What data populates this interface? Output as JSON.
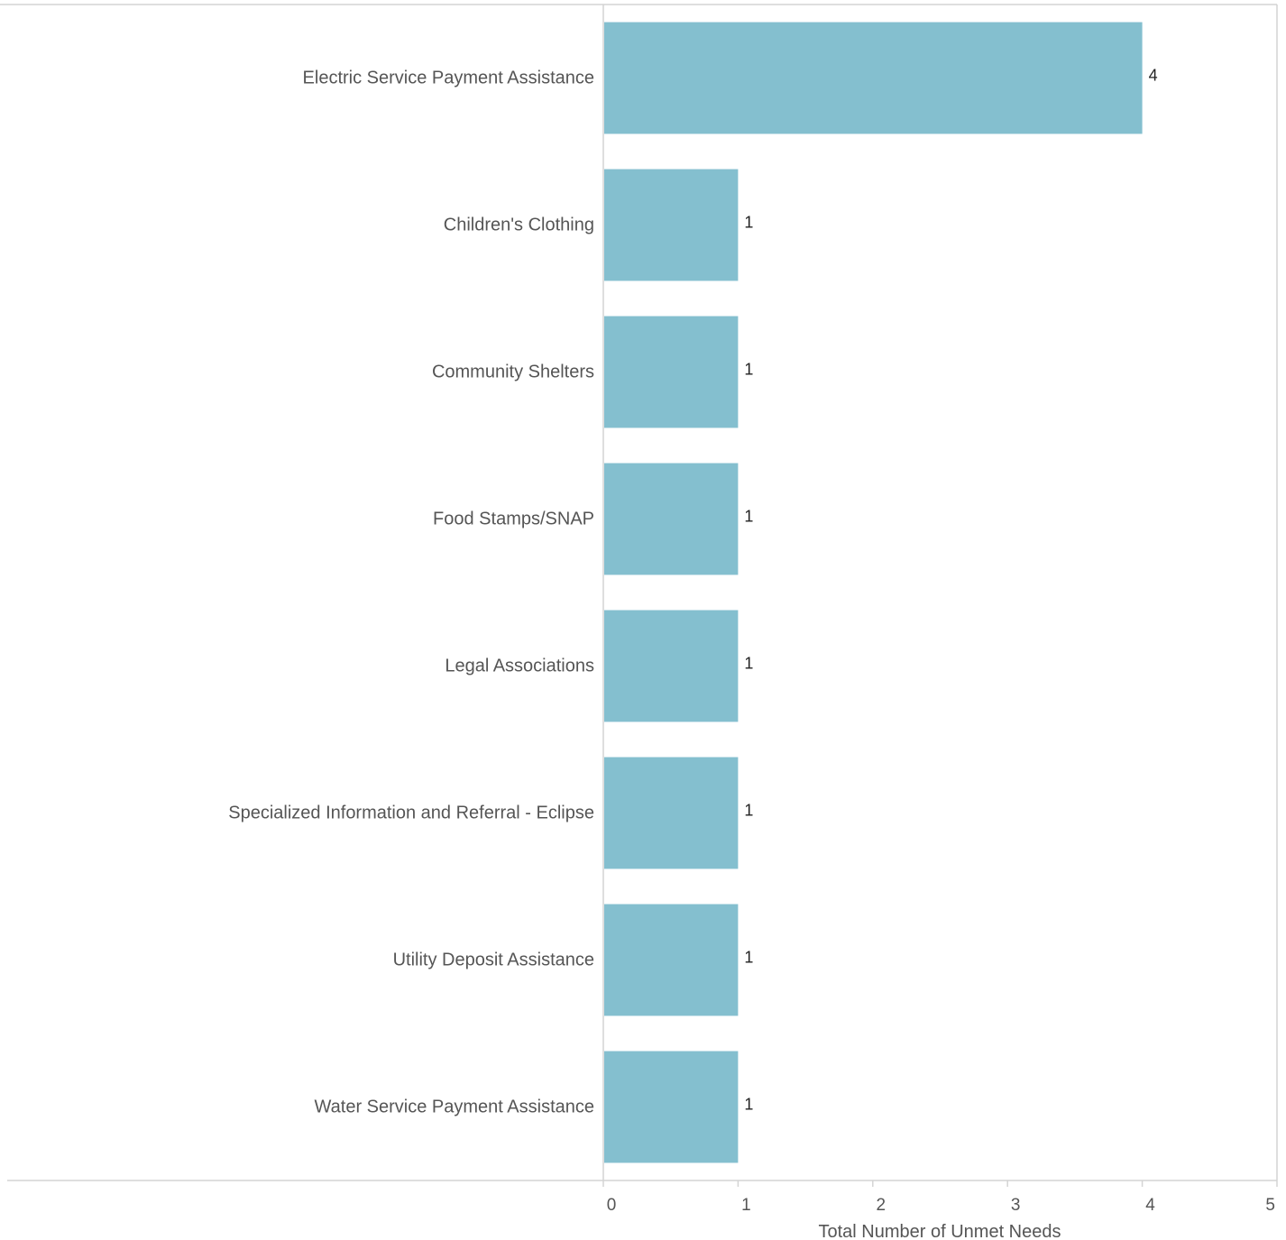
{
  "chart_data": {
    "type": "bar",
    "orientation": "horizontal",
    "categories": [
      "Electric Service Payment Assistance",
      "Children's Clothing",
      "Community Shelters",
      "Food Stamps/SNAP",
      "Legal Associations",
      "Specialized Information and Referral - Eclipse",
      "Utility Deposit Assistance",
      "Water Service Payment Assistance"
    ],
    "values": [
      4,
      1,
      1,
      1,
      1,
      1,
      1,
      1
    ],
    "xlabel": "Total Number of Unmet Needs",
    "ylabel": "",
    "xlim": [
      0,
      5
    ],
    "xticks": [
      "0",
      "1",
      "2",
      "3",
      "4",
      "5"
    ],
    "data_labels": true,
    "grid": false,
    "legend": "none",
    "colors": {
      "bar": "#84bfcf",
      "axis": "#d4d4d4",
      "text": "#555555",
      "data_label": "#222222"
    }
  }
}
